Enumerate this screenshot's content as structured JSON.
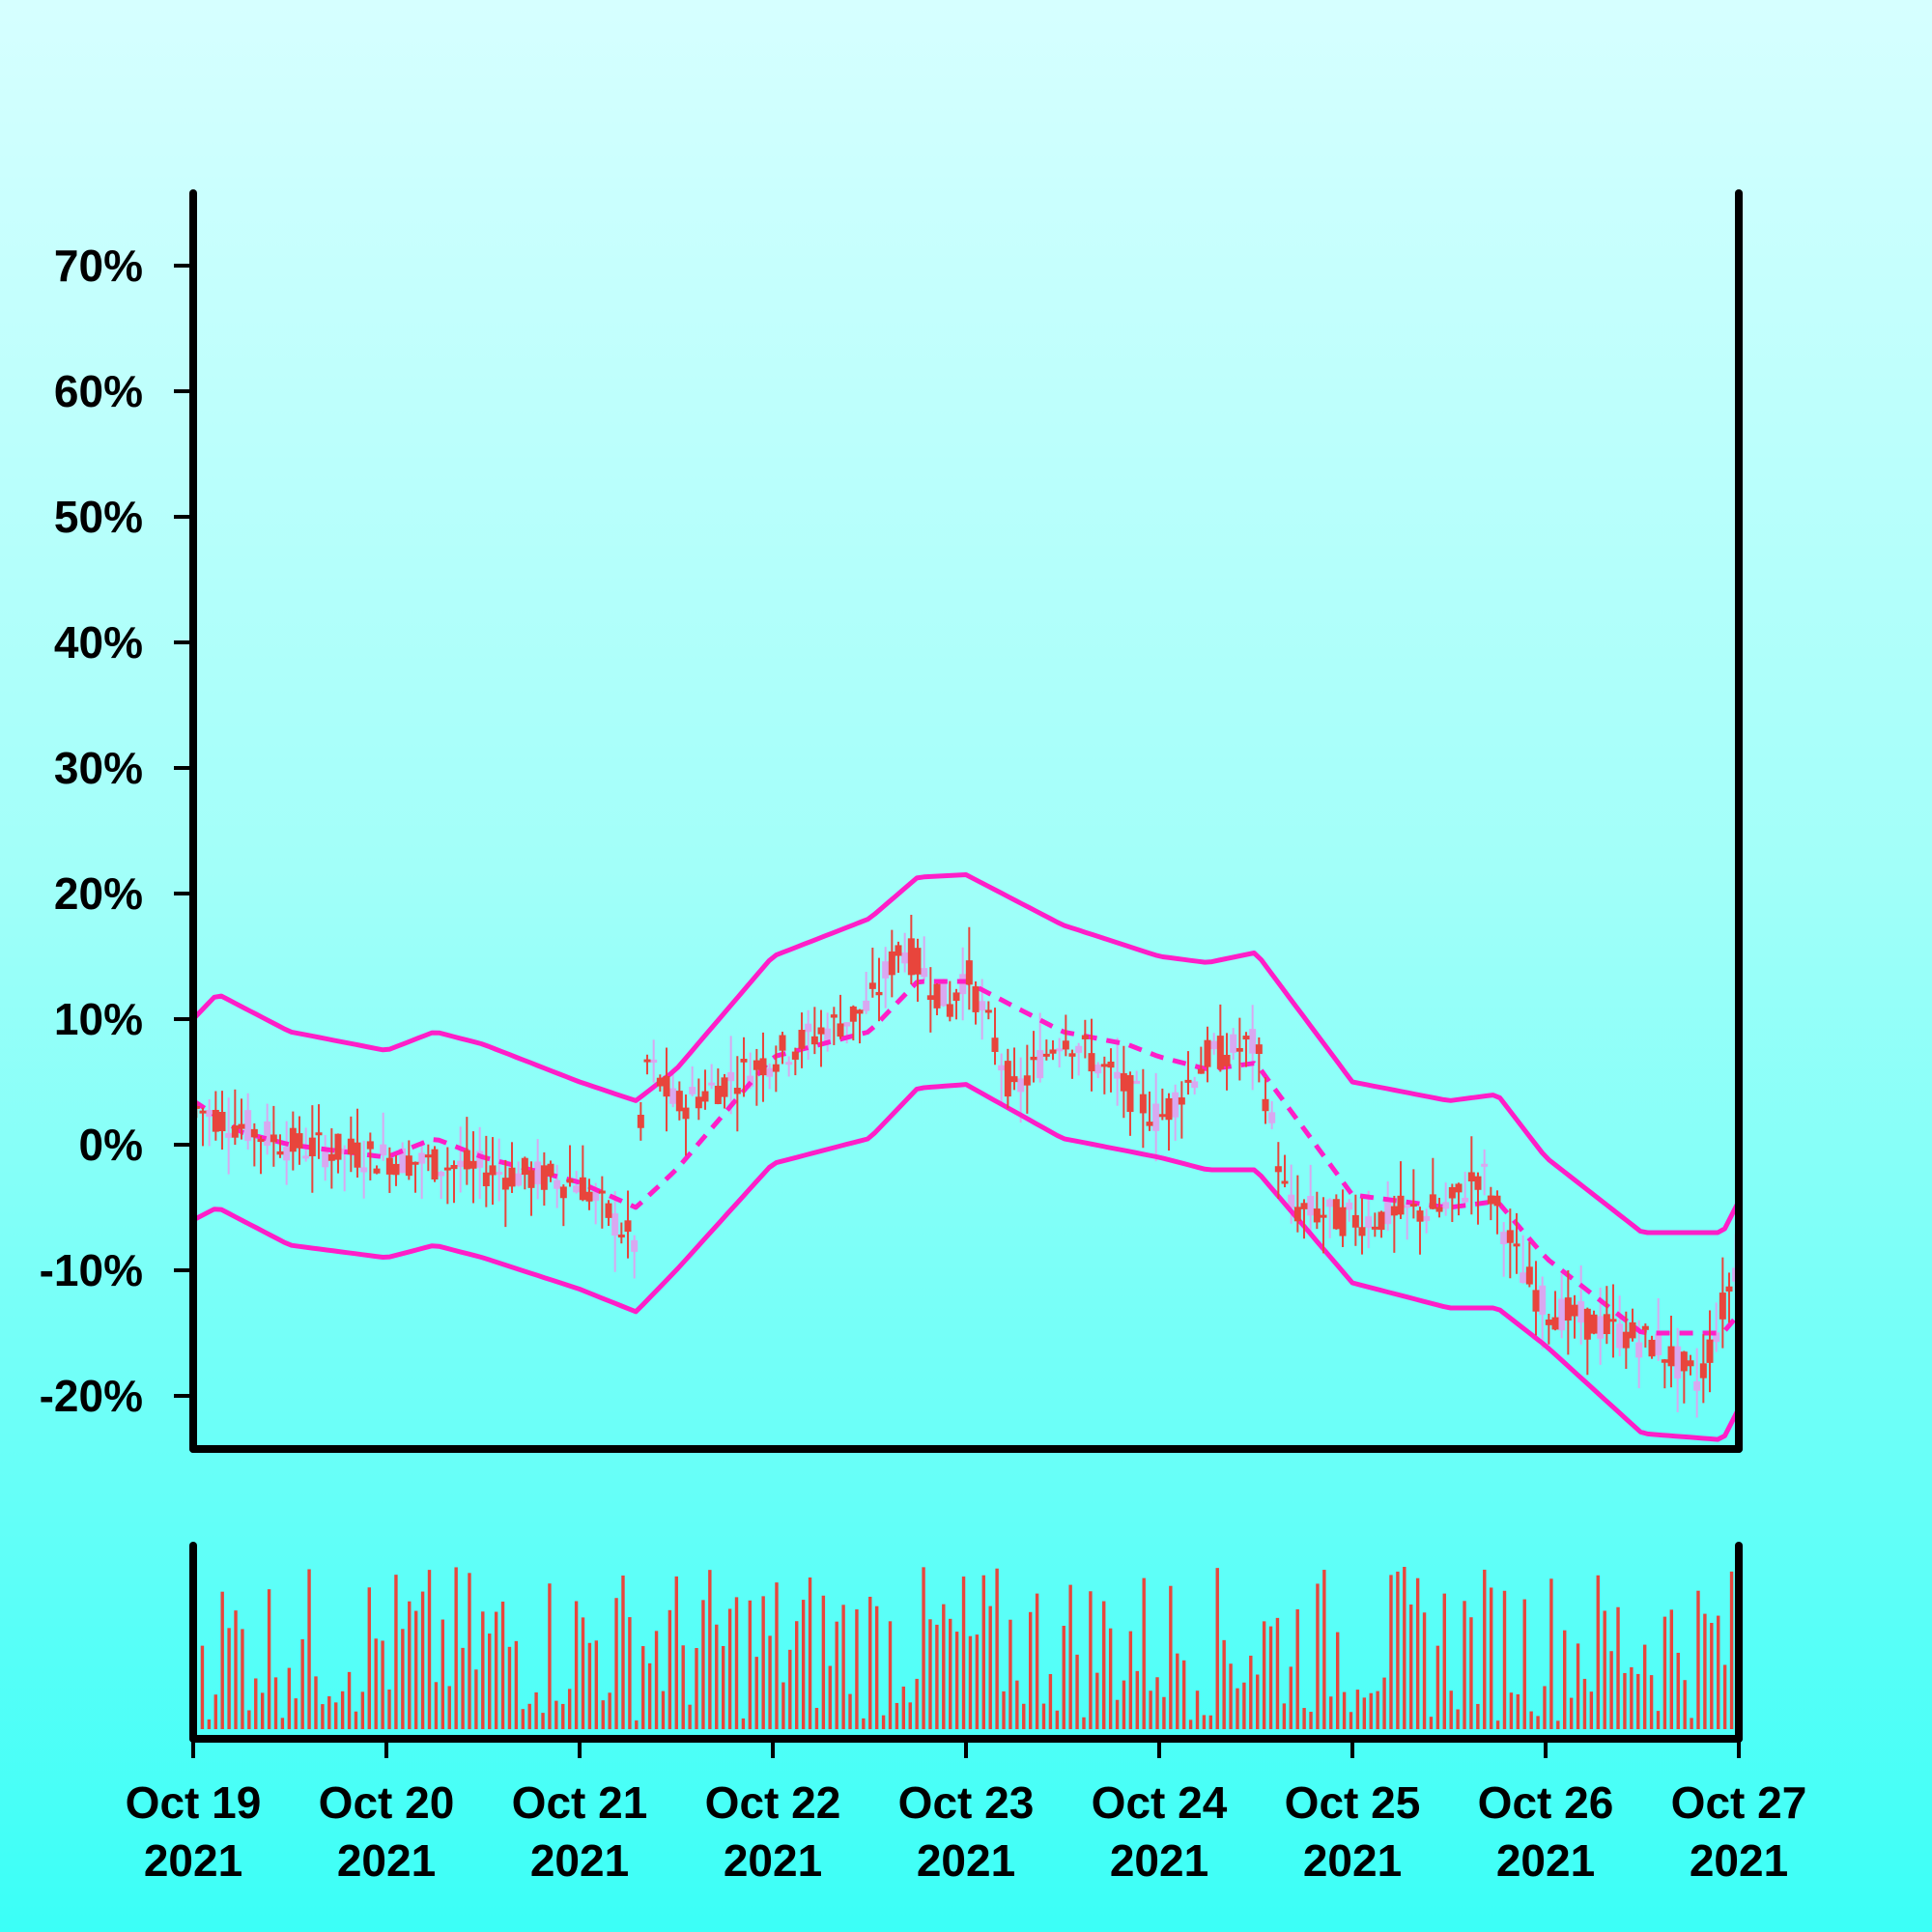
{
  "chart_data": [
    {
      "type": "candlestick",
      "title": "",
      "xlabel": "",
      "ylabel": "",
      "ylim": [
        -24,
        76
      ],
      "y_ticks": [
        "70%",
        "60%",
        "50%",
        "40%",
        "30%",
        "20%",
        "10%",
        "0%",
        "-10%",
        "-20%"
      ],
      "y_tick_values": [
        70,
        60,
        50,
        40,
        30,
        20,
        10,
        0,
        -10,
        -20
      ],
      "x_range": [
        "2021-10-19",
        "2021-10-27"
      ],
      "x_ticks": [
        {
          "line1": "Oct 19",
          "line2": "2021"
        },
        {
          "line1": "Oct 20",
          "line2": "2021"
        },
        {
          "line1": "Oct 21",
          "line2": "2021"
        },
        {
          "line1": "Oct 22",
          "line2": "2021"
        },
        {
          "line1": "Oct 23",
          "line2": "2021"
        },
        {
          "line1": "Oct 24",
          "line2": "2021"
        },
        {
          "line1": "Oct 25",
          "line2": "2021"
        },
        {
          "line1": "Oct 26",
          "line2": "2021"
        },
        {
          "line1": "Oct 27",
          "line2": "2021"
        }
      ],
      "x_tick_dates": [
        "2021-10-19",
        "2021-10-20",
        "2021-10-21",
        "2021-10-22",
        "2021-10-23",
        "2021-10-24",
        "2021-10-25",
        "2021-10-26",
        "2021-10-27"
      ],
      "price_path": [
        {
          "date": "2021-10-19",
          "value": 3
        },
        {
          "date": "2021-10-19T12:00",
          "value": 0
        },
        {
          "date": "2021-10-20",
          "value": -1
        },
        {
          "date": "2021-10-20T12:00",
          "value": -2
        },
        {
          "date": "2021-10-21",
          "value": -3
        },
        {
          "date": "2021-10-21T07:00",
          "value": -8
        },
        {
          "date": "2021-10-21T08:00",
          "value": 7
        },
        {
          "date": "2021-10-21T12:00",
          "value": 3
        },
        {
          "date": "2021-10-22",
          "value": 7
        },
        {
          "date": "2021-10-22T12:00",
          "value": 11
        },
        {
          "date": "2021-10-22T16:00",
          "value": 16
        },
        {
          "date": "2021-10-22T22:00",
          "value": 11
        },
        {
          "date": "2021-10-23",
          "value": 14
        },
        {
          "date": "2021-10-23T06:00",
          "value": 4
        },
        {
          "date": "2021-10-23T12:00",
          "value": 9
        },
        {
          "date": "2021-10-24",
          "value": 2
        },
        {
          "date": "2021-10-24T06:00",
          "value": 7
        },
        {
          "date": "2021-10-24T12:00",
          "value": 8
        },
        {
          "date": "2021-10-24T16:00",
          "value": -5
        },
        {
          "date": "2021-10-25",
          "value": -6
        },
        {
          "date": "2021-10-25T12:00",
          "value": -5
        },
        {
          "date": "2021-10-25T16:00",
          "value": -2
        },
        {
          "date": "2021-10-25T21:00",
          "value": -10
        },
        {
          "date": "2021-10-26",
          "value": -13
        },
        {
          "date": "2021-10-26T14:00",
          "value": -16
        },
        {
          "date": "2021-10-26T19:00",
          "value": -19
        },
        {
          "date": "2021-10-26T22:00",
          "value": -13
        },
        {
          "date": "2021-10-27",
          "value": -9
        }
      ],
      "band_middle": [
        {
          "date": "2021-10-19",
          "value": 3.5
        },
        {
          "date": "2021-10-19T06:00",
          "value": 1
        },
        {
          "date": "2021-10-19T12:00",
          "value": 0
        },
        {
          "date": "2021-10-20",
          "value": -1
        },
        {
          "date": "2021-10-20T06:00",
          "value": 0.5
        },
        {
          "date": "2021-10-20T12:00",
          "value": -1
        },
        {
          "date": "2021-10-21",
          "value": -3
        },
        {
          "date": "2021-10-21T07:00",
          "value": -5
        },
        {
          "date": "2021-10-21T12:00",
          "value": -2
        },
        {
          "date": "2021-10-22",
          "value": 7
        },
        {
          "date": "2021-10-22T12:00",
          "value": 9
        },
        {
          "date": "2021-10-22T18:00",
          "value": 13
        },
        {
          "date": "2021-10-23",
          "value": 13
        },
        {
          "date": "2021-10-23T12:00",
          "value": 9
        },
        {
          "date": "2021-10-23T20:00",
          "value": 8
        },
        {
          "date": "2021-10-24",
          "value": 7
        },
        {
          "date": "2021-10-24T06:00",
          "value": 6
        },
        {
          "date": "2021-10-24T12:00",
          "value": 6.5
        },
        {
          "date": "2021-10-25",
          "value": -4
        },
        {
          "date": "2021-10-25T12:00",
          "value": -5
        },
        {
          "date": "2021-10-25T18:00",
          "value": -4.5
        },
        {
          "date": "2021-10-26",
          "value": -9
        },
        {
          "date": "2021-10-26T12:00",
          "value": -15
        },
        {
          "date": "2021-10-26T22:00",
          "value": -15
        },
        {
          "date": "2021-10-27",
          "value": -13.5
        }
      ],
      "band_upper": [
        {
          "date": "2021-10-19",
          "value": 10
        },
        {
          "date": "2021-10-19T03:00",
          "value": 12
        },
        {
          "date": "2021-10-19T12:00",
          "value": 9
        },
        {
          "date": "2021-10-20",
          "value": 7.5
        },
        {
          "date": "2021-10-20T06:00",
          "value": 9
        },
        {
          "date": "2021-10-20T12:00",
          "value": 8
        },
        {
          "date": "2021-10-21",
          "value": 5
        },
        {
          "date": "2021-10-21T07:00",
          "value": 3.5
        },
        {
          "date": "2021-10-21T12:00",
          "value": 6
        },
        {
          "date": "2021-10-22",
          "value": 15
        },
        {
          "date": "2021-10-22T12:00",
          "value": 18
        },
        {
          "date": "2021-10-22T18:00",
          "value": 21.3
        },
        {
          "date": "2021-10-23",
          "value": 21.5
        },
        {
          "date": "2021-10-23T12:00",
          "value": 17.5
        },
        {
          "date": "2021-10-24",
          "value": 15
        },
        {
          "date": "2021-10-24T06:00",
          "value": 14.5
        },
        {
          "date": "2021-10-24T12:00",
          "value": 15.3
        },
        {
          "date": "2021-10-25",
          "value": 5
        },
        {
          "date": "2021-10-25T12:00",
          "value": 3.5
        },
        {
          "date": "2021-10-25T18:00",
          "value": 4
        },
        {
          "date": "2021-10-26",
          "value": -1
        },
        {
          "date": "2021-10-26T12:00",
          "value": -7
        },
        {
          "date": "2021-10-26T22:00",
          "value": -7
        },
        {
          "date": "2021-10-27",
          "value": -4.5
        }
      ],
      "band_lower": [
        {
          "date": "2021-10-19",
          "value": -6
        },
        {
          "date": "2021-10-19T03:00",
          "value": -5
        },
        {
          "date": "2021-10-19T12:00",
          "value": -8
        },
        {
          "date": "2021-10-20",
          "value": -9
        },
        {
          "date": "2021-10-20T06:00",
          "value": -8
        },
        {
          "date": "2021-10-20T12:00",
          "value": -9
        },
        {
          "date": "2021-10-21",
          "value": -11.5
        },
        {
          "date": "2021-10-21T07:00",
          "value": -13.3
        },
        {
          "date": "2021-10-21T12:00",
          "value": -10
        },
        {
          "date": "2021-10-22",
          "value": -1.5
        },
        {
          "date": "2021-10-22T12:00",
          "value": 0.5
        },
        {
          "date": "2021-10-22T18:00",
          "value": 4.5
        },
        {
          "date": "2021-10-23",
          "value": 4.8
        },
        {
          "date": "2021-10-23T12:00",
          "value": 0.5
        },
        {
          "date": "2021-10-24",
          "value": -1
        },
        {
          "date": "2021-10-24T06:00",
          "value": -2
        },
        {
          "date": "2021-10-24T12:00",
          "value": -2
        },
        {
          "date": "2021-10-25",
          "value": -11
        },
        {
          "date": "2021-10-25T12:00",
          "value": -13
        },
        {
          "date": "2021-10-25T18:00",
          "value": -13
        },
        {
          "date": "2021-10-26",
          "value": -16
        },
        {
          "date": "2021-10-26T12:00",
          "value": -23
        },
        {
          "date": "2021-10-26T22:00",
          "value": -23.5
        },
        {
          "date": "2021-10-27",
          "value": -21
        }
      ],
      "colors": {
        "candle": "#e8453c",
        "shadow": "#d9a8f0",
        "band": "#ff1ec8",
        "axis": "#000000",
        "background_top": "#d6ffff",
        "background_bottom": "#3bfff7"
      }
    },
    {
      "type": "bar",
      "title": "",
      "xlabel": "",
      "ylabel": "",
      "x_range": [
        "2021-10-19",
        "2021-10-27"
      ],
      "volume_note_relative": true,
      "color": "#e8453c"
    }
  ]
}
